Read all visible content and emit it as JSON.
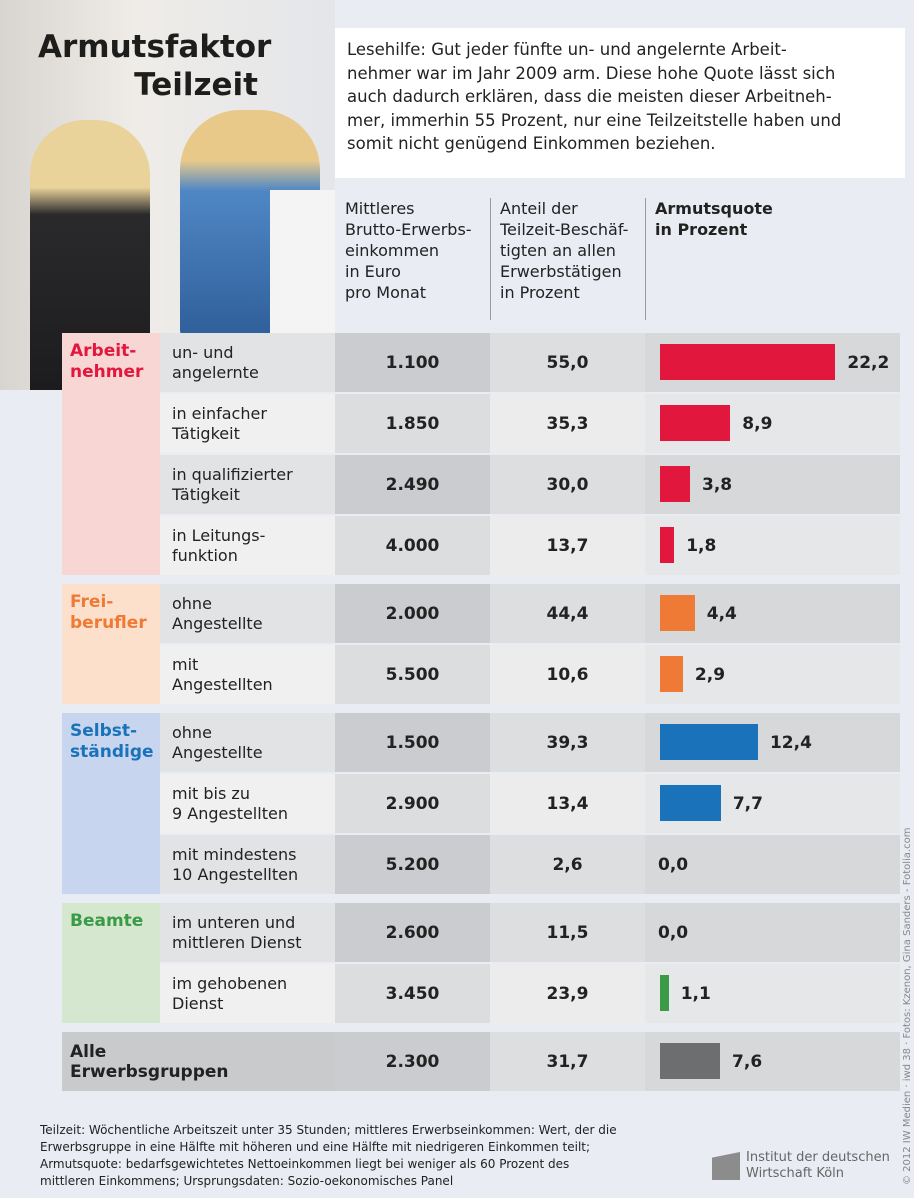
{
  "title": [
    "Armutsfaktor",
    "Teilzeit"
  ],
  "reading_help": [
    "Lesehilfe: Gut jeder fünfte un- und angelernte Arbeit-",
    "nehmer war im Jahr 2009 arm. Diese hohe Quote lässt sich",
    "auch dadurch erklären, dass die meisten dieser Arbeitneh-",
    "mer, immerhin 55 Prozent, nur eine Teilzeitstelle haben und",
    "somit nicht genügend Einkommen beziehen."
  ],
  "columns": [
    [
      "Mittleres",
      "Brutto-Erwerbs-",
      "einkommen",
      "in Euro",
      "pro Monat"
    ],
    [
      "Anteil der",
      "Teilzeit-Beschäf-",
      "tigten an allen",
      "Erwerbstätigen",
      "in Prozent"
    ],
    [
      "Armutsquote",
      "in Prozent"
    ]
  ],
  "groups": [
    {
      "name": [
        "Arbeit-",
        "nehmer"
      ],
      "color": "#e2173d",
      "light": "#f8d6d3",
      "rows": [
        {
          "label": [
            "un- und",
            "angelernte"
          ],
          "income": "1.100",
          "share": "55,0",
          "poverty": 22.2,
          "poverty_label": "22,2"
        },
        {
          "label": [
            "in einfacher",
            "Tätigkeit"
          ],
          "income": "1.850",
          "share": "35,3",
          "poverty": 8.9,
          "poverty_label": "8,9"
        },
        {
          "label": [
            "in qualifizierter",
            "Tätigkeit"
          ],
          "income": "2.490",
          "share": "30,0",
          "poverty": 3.8,
          "poverty_label": "3,8"
        },
        {
          "label": [
            "in Leitungs-",
            "funktion"
          ],
          "income": "4.000",
          "share": "13,7",
          "poverty": 1.8,
          "poverty_label": "1,8"
        }
      ]
    },
    {
      "name": [
        "Frei-",
        "berufler"
      ],
      "color": "#ef7a35",
      "light": "#fde0cb",
      "rows": [
        {
          "label": [
            "ohne",
            "Angestellte"
          ],
          "income": "2.000",
          "share": "44,4",
          "poverty": 4.4,
          "poverty_label": "4,4"
        },
        {
          "label": [
            "mit",
            "Angestellten"
          ],
          "income": "5.500",
          "share": "10,6",
          "poverty": 2.9,
          "poverty_label": "2,9"
        }
      ]
    },
    {
      "name": [
        "Selbst-",
        "ständige"
      ],
      "color": "#1a73ba",
      "light": "#c8d5ee",
      "rows": [
        {
          "label": [
            "ohne",
            "Angestellte"
          ],
          "income": "1.500",
          "share": "39,3",
          "poverty": 12.4,
          "poverty_label": "12,4"
        },
        {
          "label": [
            "mit bis zu",
            "9 Angestellten"
          ],
          "income": "2.900",
          "share": "13,4",
          "poverty": 7.7,
          "poverty_label": "7,7"
        },
        {
          "label": [
            "mit mindestens",
            "10 Angestellten"
          ],
          "income": "5.200",
          "share": "2,6",
          "poverty": 0,
          "poverty_label": "0,0"
        }
      ]
    },
    {
      "name": [
        "Beamte"
      ],
      "color": "#3a9a46",
      "light": "#d5e8cf",
      "rows": [
        {
          "label": [
            "im unteren und",
            "mittleren Dienst"
          ],
          "income": "2.600",
          "share": "11,5",
          "poverty": 0,
          "poverty_label": "0,0"
        },
        {
          "label": [
            "im gehobenen",
            "Dienst"
          ],
          "income": "3.450",
          "share": "23,9",
          "poverty": 1.1,
          "poverty_label": "1,1"
        }
      ]
    }
  ],
  "total": {
    "label": [
      "Alle",
      "Erwerbsgruppen"
    ],
    "color": "#6d6e70",
    "income": "2.300",
    "share": "31,7",
    "poverty": 7.6,
    "poverty_label": "7,6"
  },
  "footnote": [
    "Teilzeit: Wöchentliche Arbeitszeit unter 35 Stunden; mittleres Erwerbseinkommen: Wert, der die",
    "Erwerbsgruppe in eine Hälfte mit höheren und eine Hälfte mit niedrigeren Einkommen teilt;",
    "Armutsquote: bedarfsgewichtetes Nettoeinkommen liegt bei weniger als 60 Prozent des",
    "mittleren Einkommens; Ursprungsdaten: Sozio-oekonomisches Panel"
  ],
  "institute": [
    "Institut der deutschen",
    "Wirtschaft Köln"
  ],
  "credit": "© 2012 IW Medien · iwd 38 · Fotos: Kzenon, Gina Sanders - Fotolia.com"
}
